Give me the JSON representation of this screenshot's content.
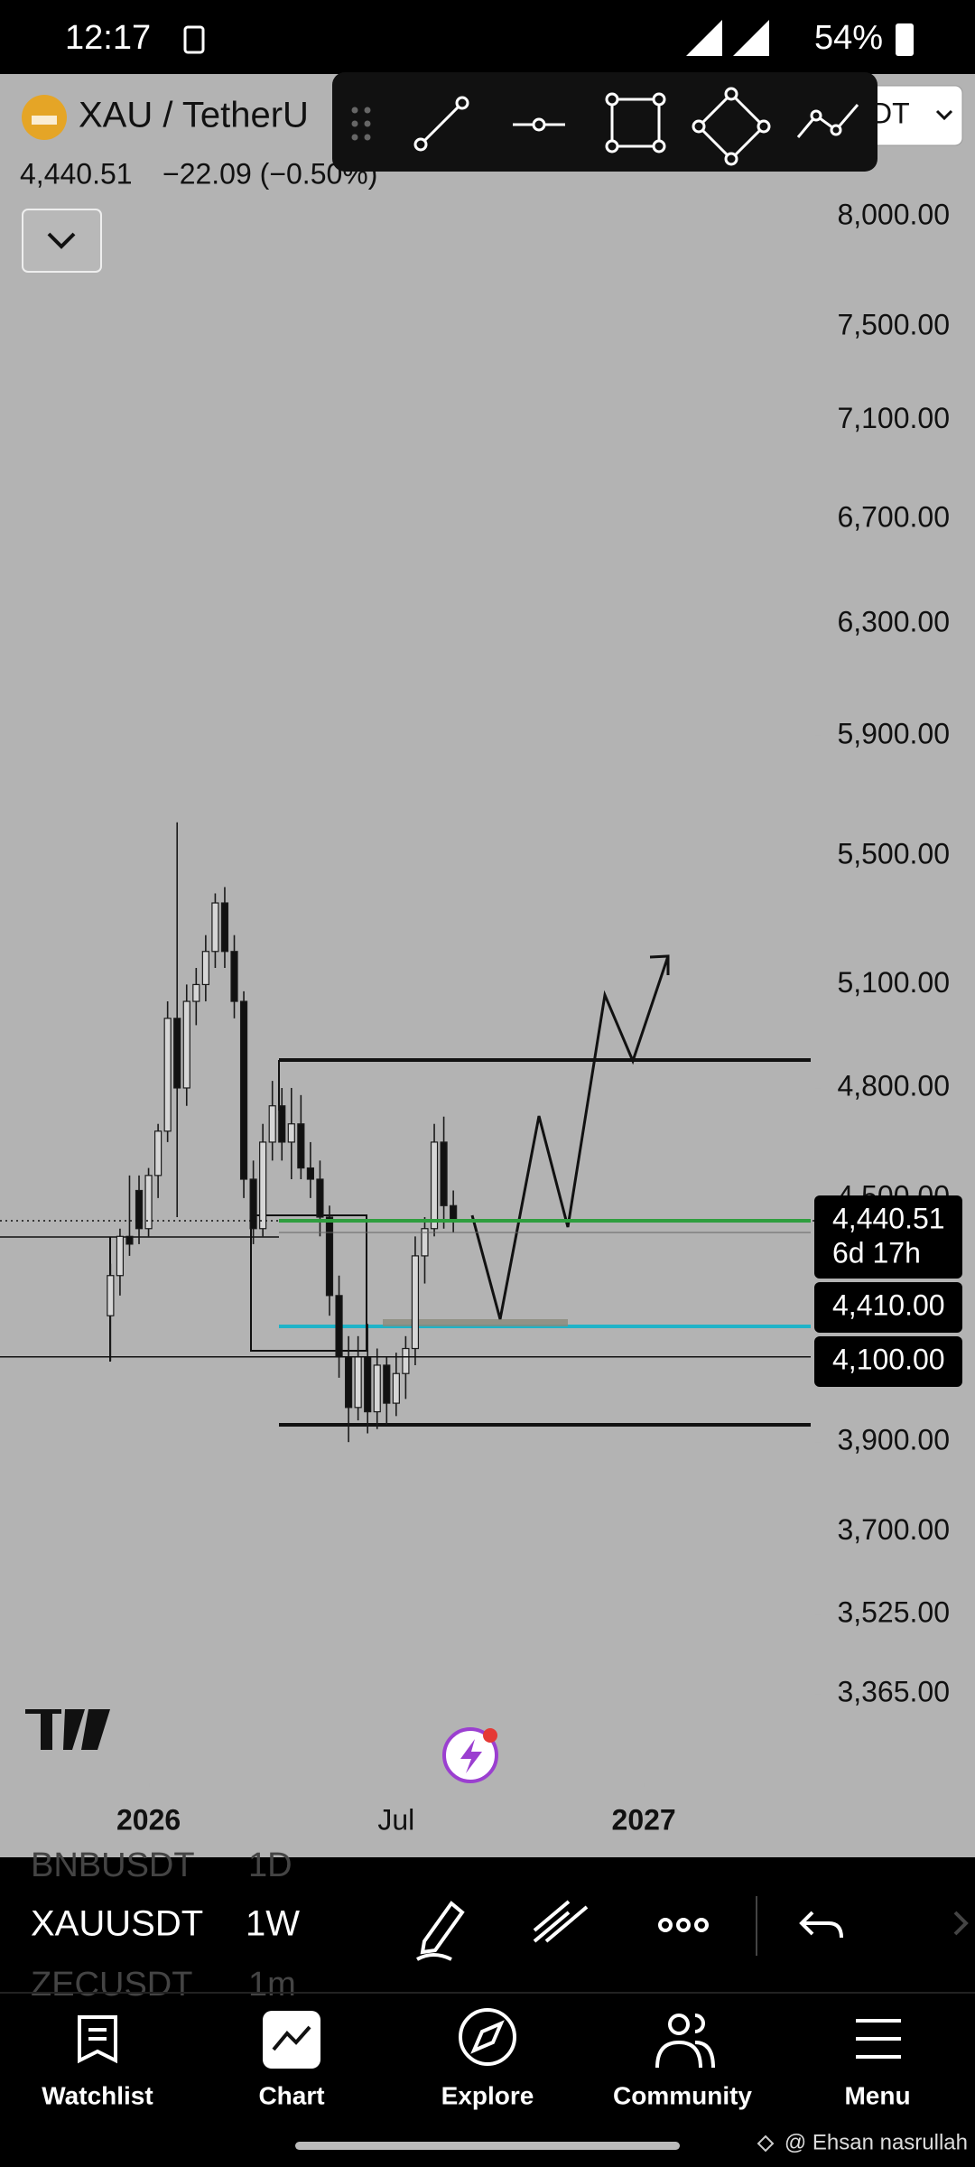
{
  "status_bar": {
    "time": "12:17",
    "battery": "54%"
  },
  "header": {
    "symbol": "XAU / TetherU",
    "price": "4,440.51",
    "change": "−22.09 (−0.50%)",
    "currency": "DT"
  },
  "chart_data": {
    "type": "candlestick",
    "x": [
      0,
      1,
      2,
      3,
      4,
      5,
      6,
      7,
      8,
      9,
      10,
      11,
      12,
      13,
      14,
      15,
      16,
      17,
      18,
      19,
      20,
      21,
      22,
      23,
      24,
      25,
      26,
      27,
      28,
      29,
      30,
      31,
      32,
      33,
      34,
      35,
      36
    ],
    "open": [
      4200,
      4300,
      4400,
      4520,
      4420,
      4560,
      4680,
      5000,
      4800,
      5050,
      5100,
      5200,
      5350,
      5200,
      5050,
      4550,
      4420,
      4650,
      4750,
      4650,
      4700,
      4580,
      4550,
      4450,
      4250,
      4100,
      3980,
      4100,
      3970,
      4080,
      3990,
      4060,
      4120,
      4350,
      4420,
      4650,
      4480
    ],
    "high": [
      4330,
      4420,
      4560,
      4560,
      4580,
      4700,
      5050,
      5609,
      5100,
      5150,
      5250,
      5380,
      5400,
      5250,
      5080,
      4600,
      4700,
      4820,
      4800,
      4800,
      4780,
      4650,
      4600,
      4480,
      4300,
      4150,
      4150,
      4180,
      4120,
      4100,
      4110,
      4150,
      4400,
      4450,
      4700,
      4720,
      4520
    ],
    "low": [
      4090,
      4250,
      4350,
      4380,
      4400,
      4500,
      4650,
      4450,
      4750,
      4980,
      5050,
      5150,
      5150,
      5000,
      4500,
      4380,
      4400,
      4600,
      4600,
      4550,
      4550,
      4500,
      4400,
      4200,
      4050,
      3900,
      3950,
      3920,
      3930,
      3940,
      3960,
      4000,
      4080,
      4280,
      4400,
      4420,
      4410
    ],
    "close": [
      4300,
      4400,
      4380,
      4420,
      4560,
      4680,
      5000,
      4800,
      5050,
      5100,
      5200,
      5350,
      5200,
      5050,
      4550,
      4420,
      4650,
      4750,
      4650,
      4700,
      4580,
      4550,
      4450,
      4250,
      4100,
      3980,
      4100,
      3970,
      4080,
      3990,
      4060,
      4120,
      4350,
      4420,
      4650,
      4480,
      4440.51
    ],
    "colors": {
      "up": "#d6d6d6",
      "down": "#111111",
      "outline": "#1a1a1a"
    },
    "log": true,
    "ylim": [
      3193,
      8698
    ],
    "yticks": [
      {
        "value": 8000,
        "label": "8,000.00"
      },
      {
        "value": 7500,
        "label": "7,500.00"
      },
      {
        "value": 7100,
        "label": "7,100.00"
      },
      {
        "value": 6700,
        "label": "6,700.00"
      },
      {
        "value": 6300,
        "label": "6,300.00"
      },
      {
        "value": 5900,
        "label": "5,900.00"
      },
      {
        "value": 5500,
        "label": "5,500.00"
      },
      {
        "value": 5100,
        "label": "5,100.00"
      },
      {
        "value": 4800,
        "label": "4,800.00"
      },
      {
        "value": 4500,
        "label": "4,500.00"
      },
      {
        "value": 3900,
        "label": "3,900.00"
      },
      {
        "value": 3700,
        "label": "3,700.00"
      },
      {
        "value": 3525,
        "label": "3,525.00"
      },
      {
        "value": 3365,
        "label": "3,365.00"
      }
    ],
    "xlim": [
      -11.6,
      74
    ],
    "xticks": [
      {
        "value": 4,
        "label": "2026"
      },
      {
        "value": 30,
        "label": "Jul"
      },
      {
        "value": 56,
        "label": "2027"
      }
    ],
    "levels": {
      "values": [
        4440.51,
        4410,
        4100
      ],
      "value_labels": [
        "4,440.51",
        "4,410.00",
        "4,100.00"
      ],
      "colors": [
        "#2e9e3e",
        "#666666",
        "#111111"
      ]
    },
    "countdown": "6d 17h"
  },
  "symbols": [
    {
      "name": "BNBUSDT",
      "interval": "1D"
    },
    {
      "name": "XAUUSDT",
      "interval": "1W"
    },
    {
      "name": "ZECUSDT",
      "interval": "1m"
    }
  ],
  "nav": [
    "Watchlist",
    "Chart",
    "Explore",
    "Community",
    "Menu"
  ],
  "watermark": "@ Ehsan nasrullah"
}
